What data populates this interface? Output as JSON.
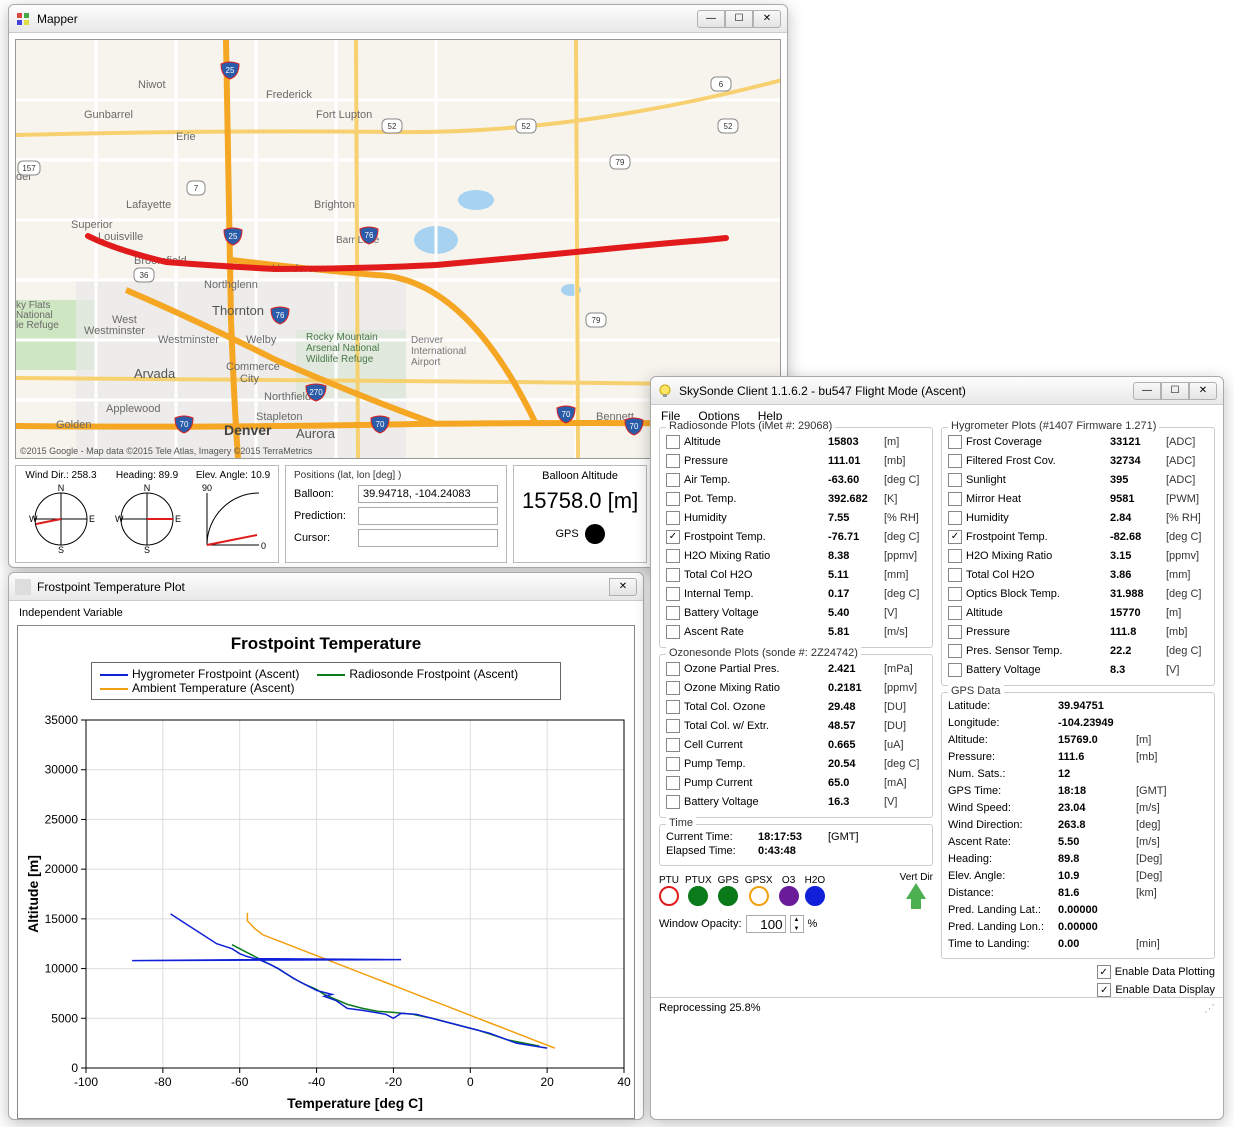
{
  "mapper": {
    "title": "Mapper",
    "attribution": "©2015 Google - Map data ©2015 Tele Atlas, Imagery ©2015 TerraMetrics",
    "winddir": {
      "label": "Wind Dir.:",
      "value": "258.3"
    },
    "heading": {
      "label": "Heading:",
      "value": "89.9"
    },
    "elev": {
      "label": "Elev. Angle:",
      "value": "10.9"
    },
    "positions": {
      "legend": "Positions (lat, lon [deg] )",
      "balloon_label": "Balloon:",
      "balloon": "39.94718, -104.24083",
      "prediction_label": "Prediction:",
      "prediction": "",
      "cursor_label": "Cursor:",
      "cursor": ""
    },
    "altitude": {
      "label": "Balloon Altitude",
      "value": "15758.0 [m]"
    },
    "gps_label": "GPS",
    "track_color": "#e11b1b",
    "map": {
      "bg": "#f7f4ee",
      "water": "#a7d2f0",
      "green": "#cfe6c2",
      "city": "#e8e8e8",
      "interstate": "#f5a623",
      "highway": "#f7d070",
      "road": "#ffffff",
      "labels": [
        "Niwot",
        "Frederick",
        "Gunbarrel",
        "Erie",
        "Fort Lupton",
        "Lafayette",
        "Brighton",
        "Louisville",
        "Broomfield",
        "Northglenn",
        "Thornton",
        "Westminster",
        "Welby",
        "Commerce City",
        "Northfield",
        "Arvada",
        "Denver",
        "Aurora",
        "Stapleton",
        "Golden",
        "Applewood",
        "Bennett",
        "West Westminster",
        "Rocky Mountain Arsenal National Wildlife Refuge",
        "Denver International Airport",
        "ky Flats National le Refuge",
        "Barr Lake",
        "Henderson",
        "Superior",
        "der"
      ],
      "shields": [
        "25",
        "25",
        "52",
        "52",
        "52",
        "79",
        "79",
        "6",
        "157",
        "76",
        "76",
        "270",
        "70",
        "70",
        "70",
        "70",
        "70",
        "36",
        "7"
      ]
    }
  },
  "plot": {
    "wintitle": "Frostpoint Temperature Plot",
    "menu": "Independent Variable",
    "title": "Frostpoint Temperature",
    "legend": {
      "s1": {
        "label": "Hygrometer Frostpoint (Ascent)",
        "color": "#1020d8"
      },
      "s2": {
        "label": "Radiosonde Frostpoint (Ascent)",
        "color": "#0a7a1a"
      },
      "s3": {
        "label": "Ambient Temperature (Ascent)",
        "color": "#f2a010"
      }
    },
    "xlabel": "Temperature [deg C]",
    "ylabel": "Altitude [m]",
    "xlim": [
      -100,
      40
    ],
    "ylim": [
      0,
      35000
    ],
    "xticks": [
      -100,
      -80,
      -60,
      -40,
      -20,
      0,
      20,
      40
    ],
    "yticks": [
      0,
      5000,
      10000,
      15000,
      20000,
      25000,
      30000,
      35000
    ],
    "grid_color": "#dddddd",
    "axis_color": "#000000",
    "tick_fontsize": 12,
    "label_fontsize": 14,
    "title_fontsize": 17,
    "line_width": 1.5,
    "series": {
      "hygrometer": [
        [
          20,
          2000
        ],
        [
          12,
          2500
        ],
        [
          5,
          3500
        ],
        [
          -2,
          4200
        ],
        [
          -8,
          4800
        ],
        [
          -12,
          5200
        ],
        [
          -14,
          5400
        ],
        [
          -18,
          5500
        ],
        [
          -20,
          5000
        ],
        [
          -22,
          5400
        ],
        [
          -28,
          5800
        ],
        [
          -32,
          6000
        ],
        [
          -35,
          6800
        ],
        [
          -38,
          7200
        ],
        [
          -36,
          7400
        ],
        [
          -40,
          7800
        ],
        [
          -42,
          8200
        ],
        [
          -45,
          8800
        ],
        [
          -48,
          9500
        ],
        [
          -50,
          10000
        ],
        [
          -52,
          10400
        ],
        [
          -55,
          10900
        ],
        [
          -88,
          10800
        ],
        [
          -18,
          10900
        ],
        [
          -56,
          11000
        ],
        [
          -58,
          11200
        ],
        [
          -60,
          11500
        ],
        [
          -62,
          12000
        ],
        [
          -66,
          12500
        ],
        [
          -70,
          13500
        ],
        [
          -74,
          14500
        ],
        [
          -78,
          15500
        ]
      ],
      "radiosonde": [
        [
          18,
          2200
        ],
        [
          10,
          2800
        ],
        [
          2,
          3800
        ],
        [
          -5,
          4500
        ],
        [
          -10,
          5000
        ],
        [
          -15,
          5400
        ],
        [
          -20,
          5600
        ],
        [
          -24,
          5700
        ],
        [
          -28,
          6000
        ],
        [
          -32,
          6400
        ],
        [
          -35,
          6900
        ],
        [
          -38,
          7400
        ],
        [
          -40,
          7900
        ],
        [
          -43,
          8400
        ],
        [
          -46,
          9000
        ],
        [
          -48,
          9500
        ],
        [
          -50,
          10000
        ],
        [
          -53,
          10600
        ],
        [
          -56,
          11200
        ],
        [
          -58,
          11600
        ],
        [
          -60,
          12000
        ],
        [
          -62,
          12400
        ]
      ],
      "ambient": [
        [
          22,
          2000
        ],
        [
          18,
          2600
        ],
        [
          14,
          3200
        ],
        [
          10,
          3800
        ],
        [
          6,
          4400
        ],
        [
          2,
          5000
        ],
        [
          -2,
          5600
        ],
        [
          -6,
          6200
        ],
        [
          -10,
          6800
        ],
        [
          -14,
          7400
        ],
        [
          -18,
          8000
        ],
        [
          -22,
          8600
        ],
        [
          -26,
          9200
        ],
        [
          -30,
          9800
        ],
        [
          -34,
          10400
        ],
        [
          -38,
          11000
        ],
        [
          -42,
          11600
        ],
        [
          -46,
          12200
        ],
        [
          -50,
          12800
        ],
        [
          -54,
          13400
        ],
        [
          -56,
          14000
        ],
        [
          -58,
          14800
        ],
        [
          -58,
          15600
        ]
      ]
    }
  },
  "client": {
    "title": "SkySonde Client 1.1.6.2 - bu547 Flight Mode (Ascent)",
    "menu": {
      "file": "File",
      "options": "Options",
      "help": "Help"
    },
    "radiosonde": {
      "title": "Radiosonde Plots (iMet #: 29068)",
      "rows": [
        {
          "name": "Altitude",
          "value": "15803",
          "unit": "[m]",
          "checked": false
        },
        {
          "name": "Pressure",
          "value": "111.01",
          "unit": "[mb]",
          "checked": false
        },
        {
          "name": "Air Temp.",
          "value": "-63.60",
          "unit": "[deg C]",
          "checked": false
        },
        {
          "name": "Pot. Temp.",
          "value": "392.682",
          "unit": "[K]",
          "checked": false
        },
        {
          "name": "Humidity",
          "value": "7.55",
          "unit": "[% RH]",
          "checked": false
        },
        {
          "name": "Frostpoint Temp.",
          "value": "-76.71",
          "unit": "[deg C]",
          "checked": true
        },
        {
          "name": "H2O Mixing Ratio",
          "value": "8.38",
          "unit": "[ppmv]",
          "checked": false
        },
        {
          "name": "Total Col H2O",
          "value": "5.11",
          "unit": "[mm]",
          "checked": false
        },
        {
          "name": "Internal Temp.",
          "value": "0.17",
          "unit": "[deg C]",
          "checked": false
        },
        {
          "name": "Battery Voltage",
          "value": "5.40",
          "unit": "[V]",
          "checked": false
        },
        {
          "name": "Ascent Rate",
          "value": "5.81",
          "unit": "[m/s]",
          "checked": false
        }
      ]
    },
    "ozonesonde": {
      "title": "Ozonesonde Plots (sonde #: 2Z24742)",
      "rows": [
        {
          "name": "Ozone Partial Pres.",
          "value": "2.421",
          "unit": "[mPa]",
          "checked": false
        },
        {
          "name": "Ozone Mixing Ratio",
          "value": "0.2181",
          "unit": "[ppmv]",
          "checked": false
        },
        {
          "name": "Total Col. Ozone",
          "value": "29.48",
          "unit": "[DU]",
          "checked": false
        },
        {
          "name": "Total Col. w/ Extr.",
          "value": "48.57",
          "unit": "[DU]",
          "checked": false
        },
        {
          "name": "Cell Current",
          "value": "0.665",
          "unit": "[uA]",
          "checked": false
        },
        {
          "name": "Pump Temp.",
          "value": "20.54",
          "unit": "[deg C]",
          "checked": false
        },
        {
          "name": "Pump Current",
          "value": "65.0",
          "unit": "[mA]",
          "checked": false
        },
        {
          "name": "Battery Voltage",
          "value": "16.3",
          "unit": "[V]",
          "checked": false
        }
      ]
    },
    "time": {
      "title": "Time",
      "current_label": "Current Time:",
      "current": "18:17:53",
      "current_unit": "[GMT]",
      "elapsed_label": "Elapsed Time:",
      "elapsed": "0:43:48"
    },
    "indicators": [
      {
        "name": "PTU",
        "border": "#e11b1b",
        "fill": "#ffffff"
      },
      {
        "name": "PTUX",
        "border": "#0a7a1a",
        "fill": "#0a7a1a"
      },
      {
        "name": "GPS",
        "border": "#0a7a1a",
        "fill": "#0a7a1a"
      },
      {
        "name": "GPSX",
        "border": "#f2a010",
        "fill": "#ffffff"
      },
      {
        "name": "O3",
        "border": "#6a1b9a",
        "fill": "#6a1b9a"
      },
      {
        "name": "H2O",
        "border": "#1020d8",
        "fill": "#1020d8"
      }
    ],
    "vertdir_label": "Vert Dir",
    "opacity": {
      "label": "Window Opacity:",
      "value": "100",
      "unit": "%"
    },
    "hygrometer": {
      "title": "Hygrometer Plots (#1407 Firmware 1.271)",
      "rows": [
        {
          "name": "Frost Coverage",
          "value": "33121",
          "unit": "[ADC]",
          "checked": false
        },
        {
          "name": "Filtered Frost Cov.",
          "value": "32734",
          "unit": "[ADC]",
          "checked": false
        },
        {
          "name": "Sunlight",
          "value": "395",
          "unit": "[ADC]",
          "checked": false
        },
        {
          "name": "Mirror Heat",
          "value": "9581",
          "unit": "[PWM]",
          "checked": false
        },
        {
          "name": "Humidity",
          "value": "2.84",
          "unit": "[% RH]",
          "checked": false
        },
        {
          "name": "Frostpoint Temp.",
          "value": "-82.68",
          "unit": "[deg C]",
          "checked": true
        },
        {
          "name": "H2O Mixing Ratio",
          "value": "3.15",
          "unit": "[ppmv]",
          "checked": false
        },
        {
          "name": "Total Col H2O",
          "value": "3.86",
          "unit": "[mm]",
          "checked": false
        },
        {
          "name": "Optics Block Temp.",
          "value": "31.988",
          "unit": "[deg C]",
          "checked": false
        },
        {
          "name": "Altitude",
          "value": "15770",
          "unit": "[m]",
          "checked": false
        },
        {
          "name": "Pressure",
          "value": "111.8",
          "unit": "[mb]",
          "checked": false
        },
        {
          "name": "Pres. Sensor Temp.",
          "value": "22.2",
          "unit": "[deg C]",
          "checked": false
        },
        {
          "name": "Battery Voltage",
          "value": "8.3",
          "unit": "[V]",
          "checked": false
        }
      ]
    },
    "gps": {
      "title": "GPS Data",
      "rows": [
        {
          "name": "Latitude:",
          "value": "39.94751",
          "unit": ""
        },
        {
          "name": "Longitude:",
          "value": "-104.23949",
          "unit": ""
        },
        {
          "name": "Altitude:",
          "value": "15769.0",
          "unit": "[m]"
        },
        {
          "name": "Pressure:",
          "value": "111.6",
          "unit": "[mb]"
        },
        {
          "name": "Num. Sats.:",
          "value": "12",
          "unit": ""
        },
        {
          "name": "GPS Time:",
          "value": "18:18",
          "unit": "[GMT]"
        },
        {
          "name": "Wind Speed:",
          "value": "23.04",
          "unit": "[m/s]"
        },
        {
          "name": "Wind Direction:",
          "value": "263.8",
          "unit": "[deg]"
        },
        {
          "name": "Ascent Rate:",
          "value": "5.50",
          "unit": "[m/s]"
        },
        {
          "name": "Heading:",
          "value": "89.8",
          "unit": "[Deg]"
        },
        {
          "name": "Elev. Angle:",
          "value": "10.9",
          "unit": "[Deg]"
        },
        {
          "name": "Distance:",
          "value": "81.6",
          "unit": "[km]"
        },
        {
          "name": "Pred. Landing Lat.:",
          "value": "0.00000",
          "unit": ""
        },
        {
          "name": "Pred. Landing Lon.:",
          "value": "0.00000",
          "unit": ""
        },
        {
          "name": "Time to Landing:",
          "value": "0.00",
          "unit": "[min]"
        }
      ]
    },
    "enable_plotting": "Enable Data Plotting",
    "enable_display": "Enable Data Display",
    "status": "Reprocessing 25.8%"
  }
}
